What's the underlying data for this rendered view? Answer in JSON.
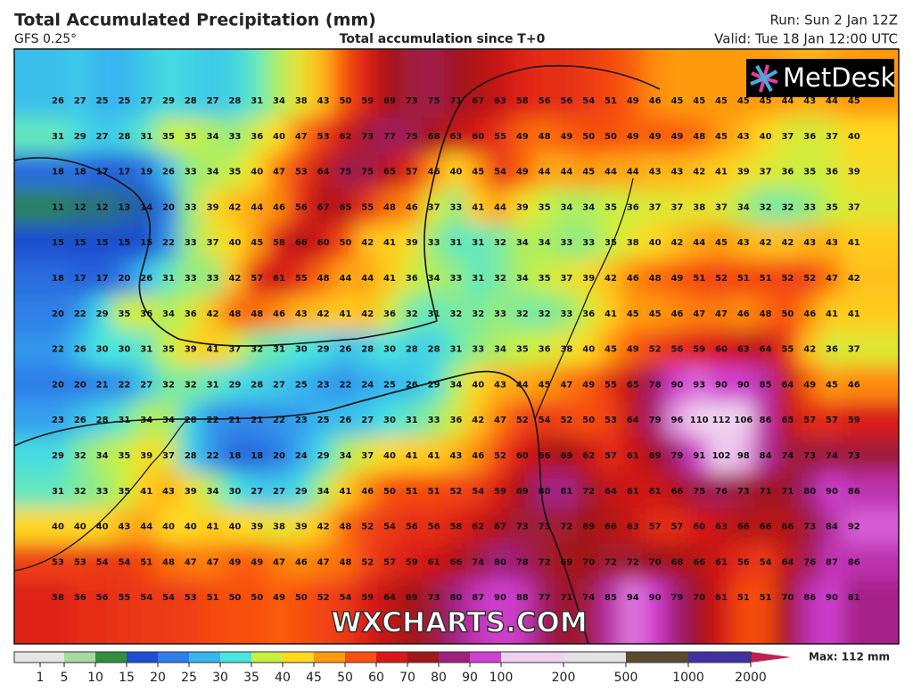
{
  "header": {
    "title": "Total Accumulated Precipitation (mm)",
    "model": "GFS 0.25°",
    "subtitle": "Total accumulation since T+0",
    "run": "Run: Sun 2 Jan 12Z",
    "valid": "Valid: Tue 18 Jan 12:00 UTC"
  },
  "map": {
    "logo": "MetDesk",
    "watermark": "WXCHARTS.COM",
    "rows": [
      [
        26,
        27,
        25,
        25,
        27,
        29,
        28,
        27,
        28,
        31,
        34,
        38,
        43,
        50,
        59,
        69,
        73,
        75,
        71,
        67,
        63,
        58,
        56,
        56,
        54,
        51,
        49,
        46,
        45,
        45,
        45,
        45,
        45,
        44,
        43,
        44,
        45
      ],
      [
        31,
        29,
        27,
        28,
        31,
        35,
        35,
        34,
        33,
        36,
        40,
        47,
        53,
        62,
        73,
        77,
        75,
        68,
        63,
        60,
        55,
        49,
        48,
        49,
        50,
        50,
        49,
        49,
        49,
        48,
        45,
        43,
        40,
        37,
        36,
        37,
        40
      ],
      [
        18,
        18,
        17,
        17,
        19,
        26,
        33,
        34,
        35,
        40,
        47,
        53,
        64,
        75,
        75,
        65,
        57,
        46,
        40,
        45,
        54,
        49,
        44,
        44,
        45,
        44,
        44,
        43,
        43,
        42,
        41,
        39,
        37,
        36,
        35,
        36,
        39
      ],
      [
        11,
        12,
        12,
        13,
        14,
        20,
        33,
        39,
        42,
        44,
        46,
        56,
        67,
        65,
        55,
        48,
        46,
        37,
        33,
        41,
        44,
        39,
        35,
        34,
        34,
        35,
        36,
        37,
        37,
        38,
        37,
        34,
        32,
        32,
        33,
        35,
        37
      ],
      [
        15,
        15,
        15,
        15,
        15,
        22,
        33,
        37,
        40,
        45,
        58,
        66,
        60,
        50,
        42,
        41,
        39,
        33,
        31,
        31,
        32,
        34,
        34,
        33,
        33,
        35,
        38,
        40,
        42,
        44,
        45,
        43,
        42,
        42,
        43,
        43,
        41
      ],
      [
        18,
        17,
        17,
        20,
        26,
        31,
        33,
        33,
        42,
        57,
        61,
        55,
        48,
        44,
        44,
        41,
        36,
        34,
        33,
        31,
        32,
        34,
        35,
        37,
        39,
        42,
        46,
        48,
        49,
        51,
        52,
        51,
        51,
        52,
        52,
        47,
        42
      ],
      [
        20,
        22,
        29,
        35,
        36,
        34,
        36,
        42,
        48,
        48,
        46,
        43,
        42,
        41,
        42,
        36,
        32,
        31,
        32,
        32,
        33,
        32,
        32,
        33,
        36,
        41,
        45,
        45,
        46,
        47,
        47,
        46,
        48,
        50,
        46,
        41,
        41
      ],
      [
        22,
        26,
        30,
        30,
        31,
        35,
        39,
        41,
        37,
        32,
        31,
        30,
        29,
        26,
        28,
        30,
        28,
        28,
        31,
        33,
        34,
        35,
        36,
        38,
        40,
        45,
        49,
        52,
        56,
        59,
        60,
        63,
        64,
        55,
        42,
        36,
        37
      ],
      [
        20,
        20,
        21,
        22,
        27,
        32,
        32,
        31,
        29,
        28,
        27,
        25,
        23,
        22,
        24,
        25,
        26,
        29,
        34,
        40,
        43,
        44,
        45,
        47,
        49,
        55,
        65,
        78,
        90,
        93,
        90,
        90,
        85,
        64,
        49,
        45,
        46
      ],
      [
        23,
        26,
        28,
        31,
        34,
        34,
        28,
        22,
        21,
        21,
        22,
        23,
        25,
        26,
        27,
        30,
        31,
        33,
        36,
        42,
        47,
        52,
        54,
        52,
        50,
        53,
        64,
        79,
        96,
        110,
        112,
        106,
        86,
        65,
        57,
        57,
        59
      ],
      [
        29,
        32,
        34,
        35,
        39,
        37,
        28,
        22,
        18,
        18,
        20,
        24,
        29,
        34,
        37,
        40,
        41,
        41,
        43,
        46,
        52,
        60,
        66,
        69,
        62,
        57,
        61,
        69,
        79,
        91,
        102,
        98,
        84,
        74,
        73,
        74,
        73
      ],
      [
        31,
        32,
        33,
        35,
        41,
        43,
        39,
        34,
        30,
        27,
        27,
        29,
        34,
        41,
        46,
        50,
        51,
        51,
        52,
        54,
        59,
        69,
        80,
        81,
        72,
        64,
        61,
        61,
        66,
        75,
        76,
        73,
        71,
        71,
        80,
        90,
        86
      ],
      [
        40,
        40,
        40,
        43,
        44,
        40,
        40,
        41,
        40,
        39,
        38,
        39,
        42,
        48,
        52,
        54,
        56,
        56,
        58,
        62,
        67,
        73,
        73,
        72,
        69,
        66,
        63,
        57,
        57,
        60,
        63,
        66,
        66,
        66,
        73,
        84,
        92
      ],
      [
        53,
        53,
        54,
        54,
        51,
        48,
        47,
        47,
        49,
        49,
        47,
        46,
        47,
        48,
        52,
        57,
        59,
        61,
        66,
        74,
        80,
        78,
        72,
        69,
        70,
        72,
        72,
        70,
        68,
        66,
        61,
        56,
        54,
        64,
        76,
        87,
        86
      ],
      [
        58,
        56,
        56,
        55,
        54,
        54,
        53,
        51,
        50,
        50,
        49,
        50,
        52,
        54,
        59,
        64,
        69,
        73,
        80,
        87,
        90,
        88,
        77,
        71,
        74,
        85,
        94,
        90,
        79,
        70,
        61,
        51,
        51,
        70,
        86,
        90,
        81
      ]
    ]
  },
  "legend": {
    "ticks": [
      1,
      5,
      10,
      15,
      20,
      25,
      30,
      35,
      40,
      45,
      50,
      60,
      70,
      80,
      90,
      100,
      200,
      500,
      1000,
      2000
    ],
    "colors": [
      "#e6e6e6",
      "#a9d8a0",
      "#2f8f3c",
      "#1f4fd0",
      "#2f7fe8",
      "#38b6f0",
      "#48e6dc",
      "#c8f040",
      "#ffd820",
      "#ff9a10",
      "#f85010",
      "#d81818",
      "#a01818",
      "#a02080",
      "#d040d0",
      "#f0d0f0",
      "#e4e4e4",
      "#5a4a30",
      "#4030a0",
      "#c02050"
    ],
    "max_label": "Max: 112 mm"
  }
}
